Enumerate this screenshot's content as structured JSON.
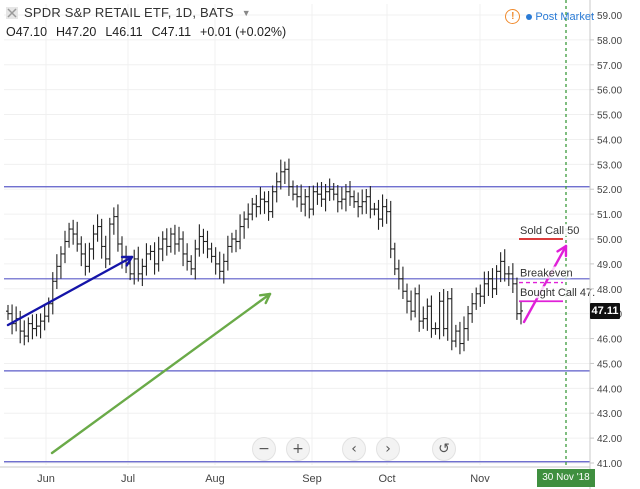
{
  "header": {
    "title": "SPDR S&P RETAIL ETF, 1D, BATS",
    "ohlc": [
      {
        "key": "O",
        "value": "47.10"
      },
      {
        "key": "H",
        "value": "47.20"
      },
      {
        "key": "L",
        "value": "46.11"
      },
      {
        "key": "C",
        "value": "47.11"
      }
    ],
    "change": "+0.01 (+0.02%)",
    "post_market": "Post Market",
    "warn_icon": "!"
  },
  "price_axis": {
    "ticks": [
      "59.00",
      "58.00",
      "57.00",
      "56.00",
      "55.00",
      "54.00",
      "53.00",
      "52.00",
      "51.00",
      "50.00",
      "49.00",
      "48.00",
      "47.00",
      "46.00",
      "45.00",
      "44.00",
      "43.00",
      "42.00",
      "41.00"
    ],
    "last_price_label": "47.11"
  },
  "time_axis": {
    "ticks": [
      "Jun",
      "Jul",
      "Aug",
      "Sep",
      "Oct",
      "Nov"
    ],
    "cursor_date": "30 Nov '18"
  },
  "annotations": {
    "sold_call": "Sold Call 50",
    "breakeven": "Breakeven",
    "bought_call": "Bought Call 47."
  },
  "colors": {
    "up_bar": "#222222",
    "horizontal_line": "#5c5cc8",
    "blue_arrow": "#1414a8",
    "green_arrow": "#6aaa48",
    "pink_arrow": "#e020d8",
    "sold_call_line": "#d42020",
    "bought_call_line": "#e020d8",
    "dashed_vertical": "#3c9a3c"
  },
  "nav": {
    "zoom_out": "−",
    "zoom_in": "+",
    "back": "‹",
    "forward": "›",
    "reset": "↺"
  },
  "chart_data": {
    "type": "ohlc",
    "symbol": "SPDR S&P RETAIL ETF",
    "interval": "1D",
    "ylim": [
      41,
      59.2
    ],
    "y_ticks": [
      41,
      42,
      43,
      44,
      45,
      46,
      47,
      48,
      49,
      50,
      51,
      52,
      53,
      54,
      55,
      56,
      57,
      58,
      59
    ],
    "x_ticks": [
      "Jun",
      "Jul",
      "Aug",
      "Sep",
      "Oct",
      "Nov"
    ],
    "close_series": [
      47.0,
      46.6,
      46.8,
      46.3,
      46.1,
      46.6,
      46.4,
      46.5,
      46.7,
      46.9,
      47.4,
      48.3,
      48.9,
      49.4,
      49.9,
      50.4,
      50.2,
      49.8,
      49.4,
      48.9,
      49.6,
      50.2,
      50.5,
      49.7,
      49.2,
      50.6,
      50.9,
      49.8,
      49.3,
      49.0,
      48.6,
      49.2,
      48.6,
      48.9,
      49.4,
      49.5,
      49.0,
      49.6,
      50.0,
      49.7,
      50.2,
      49.8,
      50.0,
      49.4,
      49.1,
      48.8,
      49.6,
      50.1,
      49.9,
      49.6,
      49.3,
      49.0,
      48.7,
      49.1,
      49.7,
      50.0,
      49.9,
      50.5,
      50.8,
      51.0,
      51.4,
      51.3,
      51.6,
      51.5,
      51.1,
      51.9,
      52.3,
      52.7,
      52.8,
      52.1,
      51.8,
      51.7,
      51.4,
      51.7,
      51.2,
      51.9,
      51.8,
      51.6,
      51.9,
      52.0,
      51.8,
      51.5,
      51.6,
      51.9,
      51.7,
      51.5,
      51.3,
      51.5,
      51.7,
      51.2,
      51.2,
      50.8,
      51.3,
      51.1,
      49.6,
      48.8,
      48.4,
      47.9,
      47.5,
      47.1,
      47.8,
      46.7,
      46.8,
      47.3,
      46.4,
      46.4,
      47.5,
      46.4,
      47.6,
      45.9,
      46.3,
      45.8,
      46.4,
      47.0,
      47.4,
      47.8,
      47.7,
      48.2,
      48.4,
      48.0,
      48.7,
      49.1,
      48.6,
      48.6,
      48.2,
      47.0,
      47.11
    ],
    "horizontal_levels": [
      52.1,
      48.4,
      44.7,
      41.05
    ],
    "option_levels": {
      "sold_call": 50.0,
      "breakeven": 48.25,
      "bought_call": 47.5
    }
  }
}
